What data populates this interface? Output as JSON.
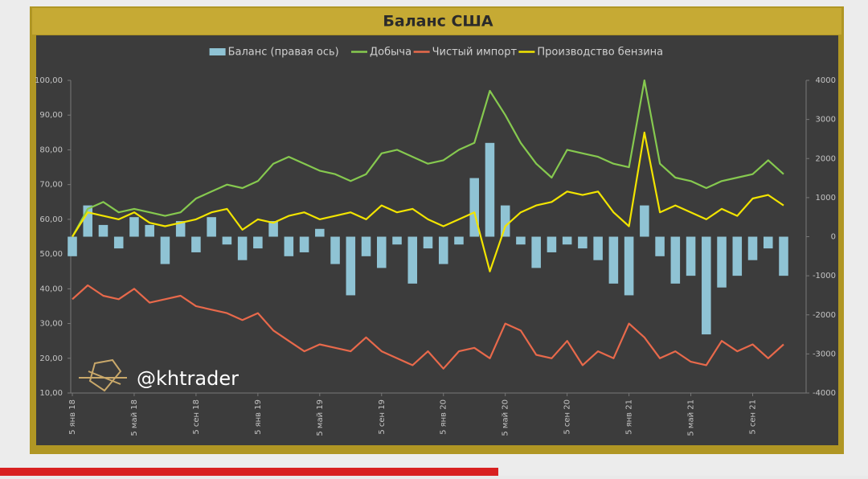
{
  "chart_data": {
    "type": "combo",
    "title": "Баланс США",
    "watermark": "@khtrader",
    "categories": [
      "5 янв 18",
      null,
      null,
      null,
      "5 май 18",
      null,
      null,
      null,
      "5 сен 18",
      null,
      null,
      null,
      "5 янв 19",
      null,
      null,
      null,
      "5 май 19",
      null,
      null,
      null,
      "5 сен 19",
      null,
      null,
      null,
      "5 янв 20",
      null,
      null,
      null,
      "5 май 20",
      null,
      null,
      null,
      "5 сен 20",
      null,
      null,
      null,
      "5 янв 21",
      null,
      null,
      null,
      "5 май 21",
      null,
      null,
      null,
      "5 сен 21",
      null,
      null
    ],
    "series": [
      {
        "name": "Баланс (правая ось)",
        "type": "bar",
        "axis": "y2",
        "color": "#8fc3d4",
        "values": [
          -500,
          800,
          300,
          -300,
          500,
          300,
          -700,
          400,
          -400,
          500,
          -200,
          -600,
          -300,
          400,
          -500,
          -400,
          200,
          -700,
          -1500,
          -500,
          -800,
          -200,
          -1200,
          -300,
          -700,
          -200,
          1500,
          2400,
          800,
          -200,
          -800,
          -400,
          -200,
          -300,
          -600,
          -1200,
          -1500,
          800,
          -500,
          -1200,
          -1000,
          -2500,
          -1300,
          -1000,
          -600,
          -300,
          -1000
        ]
      },
      {
        "name": "Добыча",
        "type": "line",
        "color": "#86c94f",
        "values": [
          55,
          63,
          65,
          62,
          63,
          62,
          61,
          62,
          66,
          68,
          70,
          69,
          71,
          76,
          78,
          76,
          74,
          73,
          71,
          73,
          79,
          80,
          78,
          76,
          77,
          80,
          82,
          97,
          90,
          82,
          76,
          72,
          80,
          79,
          78,
          76,
          75,
          100,
          76,
          72,
          71,
          69,
          71,
          72,
          73,
          77,
          73
        ]
      },
      {
        "name": "Чистый импорт",
        "type": "line",
        "color": "#e8694b",
        "values": [
          37,
          41,
          38,
          37,
          40,
          36,
          37,
          38,
          35,
          34,
          33,
          31,
          33,
          28,
          25,
          22,
          24,
          23,
          22,
          26,
          22,
          20,
          18,
          22,
          17,
          22,
          23,
          20,
          30,
          28,
          21,
          20,
          25,
          18,
          22,
          20,
          30,
          26,
          20,
          22,
          19,
          18,
          25,
          22,
          24,
          20,
          24
        ]
      },
      {
        "name": "Производство бензина",
        "type": "line",
        "color": "#f2e400",
        "values": [
          55,
          62,
          61,
          60,
          62,
          59,
          58,
          59,
          60,
          62,
          63,
          57,
          60,
          59,
          61,
          62,
          60,
          61,
          62,
          60,
          64,
          62,
          63,
          60,
          58,
          60,
          62,
          45,
          58,
          62,
          64,
          65,
          68,
          67,
          68,
          62,
          58,
          85,
          62,
          64,
          62,
          60,
          63,
          61,
          66,
          67,
          64
        ]
      }
    ],
    "ylim": [
      10,
      100
    ],
    "yticks": [
      {
        "value": 10,
        "label": "10,00"
      },
      {
        "value": 20,
        "label": "20,00"
      },
      {
        "value": 30,
        "label": "30,00"
      },
      {
        "value": 40,
        "label": "40,00"
      },
      {
        "value": 50,
        "label": "50,00"
      },
      {
        "value": 60,
        "label": "60,00"
      },
      {
        "value": 70,
        "label": "70,00"
      },
      {
        "value": 80,
        "label": "80,00"
      },
      {
        "value": 90,
        "label": "90,00"
      },
      {
        "value": 100,
        "label": "100,00"
      }
    ],
    "y2lim": [
      -4000,
      4000
    ],
    "y2ticks": [
      -4000,
      -3000,
      -2000,
      -1000,
      0,
      1000,
      2000,
      3000,
      4000
    ],
    "grid": false,
    "legend": "top"
  }
}
